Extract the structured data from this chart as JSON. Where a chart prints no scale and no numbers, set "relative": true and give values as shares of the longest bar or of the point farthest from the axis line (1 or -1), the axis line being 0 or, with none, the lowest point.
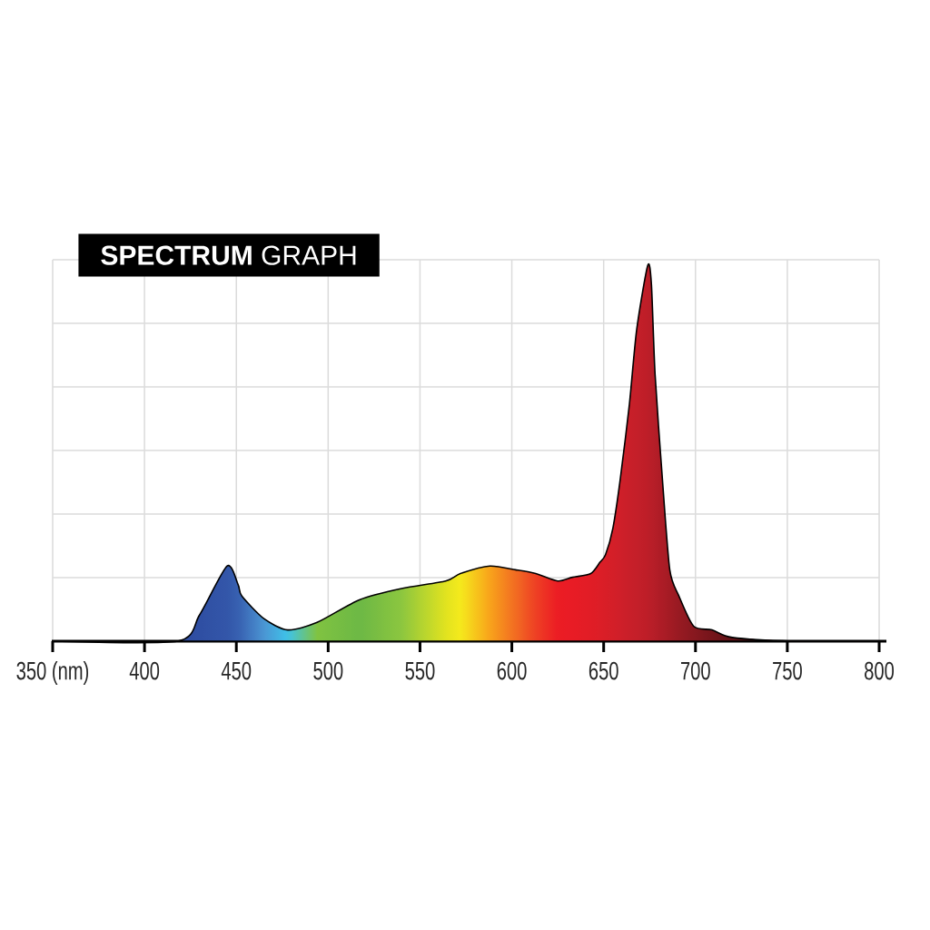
{
  "chart_data": {
    "type": "area",
    "title": "**SPECTRUM** GRAPH",
    "relative": true,
    "grid": true,
    "xlim": [
      350,
      800
    ],
    "xticks": [
      {
        "value": 350,
        "label": "350 (nm)"
      },
      400,
      450,
      500,
      550,
      600,
      650,
      700,
      750,
      800
    ],
    "x": [
      350,
      418,
      430,
      445,
      451,
      453,
      465,
      478,
      494,
      517,
      540,
      564,
      572,
      588,
      602,
      613,
      625,
      633,
      643,
      648,
      651,
      655,
      659,
      664,
      668,
      674,
      676,
      678,
      682,
      686,
      691,
      699,
      709,
      720,
      753,
      800
    ],
    "series": [
      {
        "values": [
          0,
          0,
          0.07,
          0.2,
          0.15,
          0.12,
          0.06,
          0.03,
          0.05,
          0.11,
          0.14,
          0.16,
          0.18,
          0.2,
          0.19,
          0.18,
          0.16,
          0.17,
          0.18,
          0.21,
          0.23,
          0.3,
          0.43,
          0.63,
          0.83,
          1,
          0.95,
          0.71,
          0.43,
          0.19,
          0.12,
          0.04,
          0.03,
          0.01,
          0,
          0
        ],
        "colors": [
          "#1f2f7a",
          "#2e4a9e",
          "#2f4fa3",
          "#3356a9",
          "#3760b0",
          "#3a66b5",
          "#4b95d3",
          "#3ec3ea",
          "#80c341",
          "#6cb845",
          "#8cc63f",
          "#e1e31f",
          "#f5ea1c",
          "#f8a31b",
          "#f26c22",
          "#ee4024",
          "#ec1c24",
          "#e81c25",
          "#e11d26",
          "#dc1e27",
          "#d91e27",
          "#d41f28",
          "#cf1f29",
          "#c91f29",
          "#c41f29",
          "#bd1e28",
          "#b91e28",
          "#b51d27",
          "#ac1c26",
          "#a31b24",
          "#981a22",
          "#88181f",
          "#75151b",
          "#601216",
          "#2e0a0b",
          "#111111"
        ]
      }
    ]
  }
}
